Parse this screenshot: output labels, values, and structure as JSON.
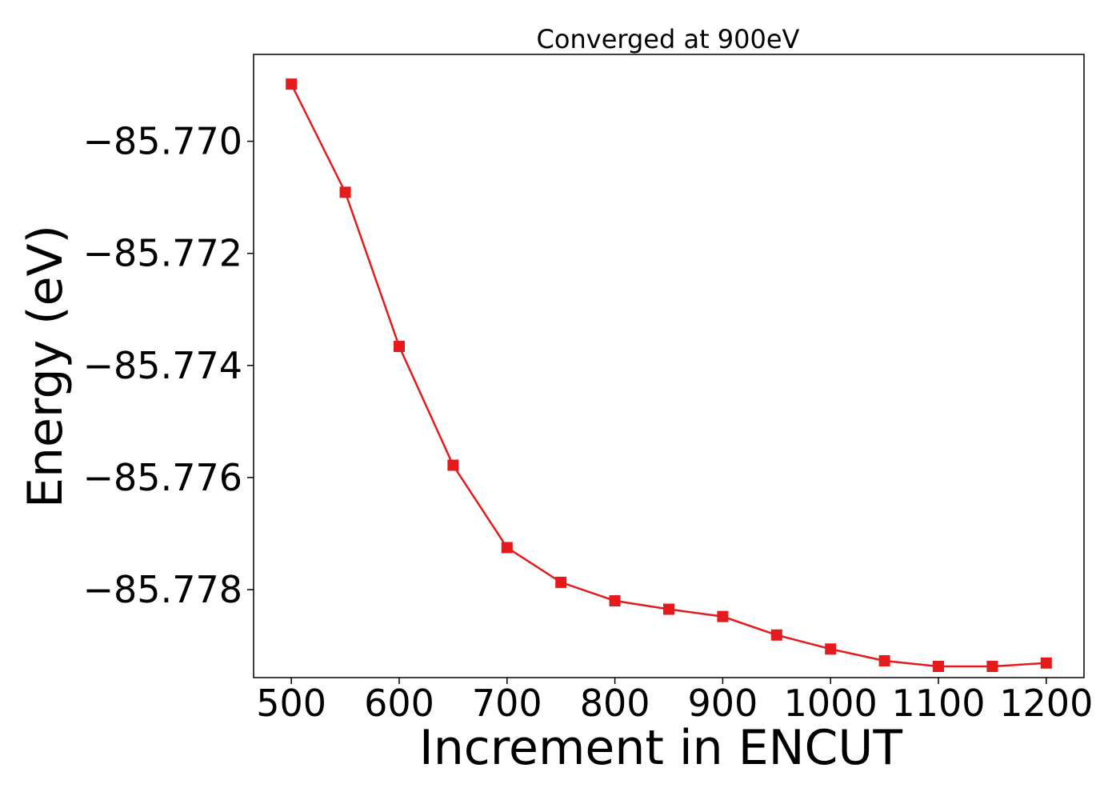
{
  "chart_data": {
    "type": "line",
    "title": "Converged at 900eV",
    "xlabel": "Increment in ENCUT",
    "ylabel": "Energy (eV)",
    "x": [
      500,
      550,
      600,
      650,
      700,
      750,
      800,
      850,
      900,
      950,
      1000,
      1050,
      1100,
      1150,
      1200
    ],
    "series": [
      {
        "values": [
          -85.76898,
          -85.77091,
          -85.77366,
          -85.77578,
          -85.77725,
          -85.77787,
          -85.7782,
          -85.77835,
          -85.77848,
          -85.77881,
          -85.77906,
          -85.77927,
          -85.77937,
          -85.77937,
          -85.77931
        ],
        "color": "#e41a1c",
        "marker": "square"
      }
    ],
    "xticks": [
      500,
      600,
      700,
      800,
      900,
      1000,
      1100,
      1200
    ],
    "xtick_labels": [
      "500",
      "600",
      "700",
      "800",
      "900",
      "1000",
      "1100",
      "1200"
    ],
    "yticks": [
      -85.77,
      -85.772,
      -85.774,
      -85.776,
      -85.778
    ],
    "ytick_labels": [
      "−85.770",
      "−85.772",
      "−85.774",
      "−85.776",
      "−85.778"
    ],
    "xlim": [
      465,
      1235
    ],
    "ylim": [
      -85.77957,
      -85.76845
    ],
    "grid": false,
    "legend": "none"
  }
}
